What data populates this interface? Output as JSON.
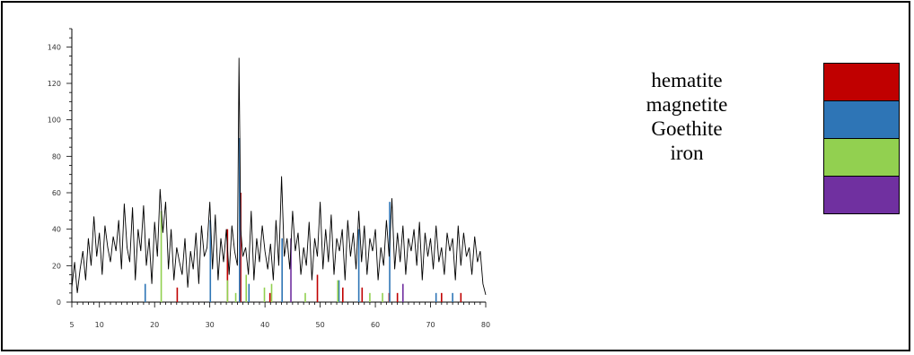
{
  "chart_data": {
    "type": "line",
    "xlabel": "",
    "ylabel": "",
    "xlim": [
      5,
      80
    ],
    "ylim": [
      0,
      150
    ],
    "x_ticks": [
      5,
      10,
      20,
      30,
      40,
      50,
      60,
      70,
      80
    ],
    "y_ticks": [
      0,
      20,
      40,
      60,
      80,
      100,
      120,
      140
    ],
    "series": [
      {
        "type": "line",
        "color": "#000000",
        "x": [
          5.0,
          5.5,
          6.0,
          6.5,
          7.0,
          7.5,
          8.0,
          8.5,
          9.0,
          9.5,
          10.0,
          10.5,
          11.0,
          11.5,
          12.0,
          12.5,
          13.0,
          13.5,
          14.0,
          14.5,
          15.0,
          15.5,
          16.0,
          16.5,
          17.0,
          17.5,
          18.0,
          18.5,
          19.0,
          19.5,
          20.0,
          20.5,
          21.0,
          21.5,
          22.0,
          22.5,
          23.0,
          23.5,
          24.0,
          24.5,
          25.0,
          25.5,
          26.0,
          26.5,
          27.0,
          27.5,
          28.0,
          28.5,
          29.0,
          29.5,
          30.0,
          30.5,
          31.0,
          31.5,
          32.0,
          32.5,
          33.0,
          33.5,
          34.0,
          34.5,
          35.0,
          35.3,
          35.6,
          36.0,
          36.5,
          37.0,
          37.5,
          38.0,
          38.5,
          39.0,
          39.5,
          40.0,
          40.5,
          41.0,
          41.5,
          42.0,
          42.5,
          43.0,
          43.5,
          44.0,
          44.5,
          45.0,
          45.5,
          46.0,
          46.5,
          47.0,
          47.5,
          48.0,
          48.5,
          49.0,
          49.5,
          50.0,
          50.5,
          51.0,
          51.5,
          52.0,
          52.5,
          53.0,
          53.5,
          54.0,
          54.5,
          55.0,
          55.5,
          56.0,
          56.5,
          57.0,
          57.5,
          58.0,
          58.5,
          59.0,
          59.5,
          60.0,
          60.5,
          61.0,
          61.5,
          62.0,
          62.5,
          63.0,
          63.5,
          64.0,
          64.5,
          65.0,
          65.5,
          66.0,
          66.5,
          67.0,
          67.5,
          68.0,
          68.5,
          69.0,
          69.5,
          70.0,
          70.5,
          71.0,
          71.5,
          72.0,
          72.5,
          73.0,
          73.5,
          74.0,
          74.5,
          75.0,
          75.5,
          76.0,
          76.5,
          77.0,
          77.5,
          78.0,
          78.5,
          79.0,
          79.5,
          80.0
        ],
        "y": [
          8,
          22,
          5,
          18,
          28,
          12,
          35,
          20,
          47,
          25,
          38,
          15,
          42,
          30,
          22,
          36,
          28,
          45,
          18,
          54,
          30,
          22,
          52,
          12,
          40,
          28,
          53,
          20,
          35,
          10,
          44,
          25,
          62,
          38,
          55,
          18,
          40,
          12,
          30,
          22,
          15,
          35,
          8,
          28,
          18,
          38,
          10,
          42,
          25,
          30,
          55,
          18,
          48,
          12,
          35,
          22,
          40,
          15,
          42,
          28,
          20,
          134,
          40,
          25,
          30,
          15,
          50,
          12,
          35,
          22,
          42,
          28,
          18,
          32,
          12,
          45,
          20,
          69,
          25,
          35,
          18,
          50,
          28,
          38,
          15,
          30,
          20,
          44,
          12,
          35,
          25,
          55,
          18,
          40,
          22,
          48,
          15,
          35,
          28,
          40,
          12,
          45,
          25,
          38,
          18,
          50,
          22,
          42,
          15,
          35,
          28,
          40,
          12,
          30,
          20,
          45,
          25,
          57,
          18,
          38,
          22,
          42,
          15,
          35,
          28,
          40,
          20,
          44,
          12,
          38,
          25,
          35,
          18,
          42,
          22,
          30,
          15,
          38,
          28,
          35,
          12,
          42,
          20,
          38,
          25,
          30,
          15,
          36,
          22,
          28,
          10,
          4
        ]
      },
      {
        "name": "hematite",
        "color": "#c00000",
        "type": "stick",
        "x": [
          24.1,
          33.2,
          35.6,
          40.9,
          49.5,
          54.1,
          57.6,
          62.5,
          64.0,
          72.0,
          75.5
        ],
        "y": [
          8,
          40,
          60,
          5,
          15,
          8,
          8,
          5,
          5,
          5,
          5
        ]
      },
      {
        "name": "magnetite",
        "color": "#2e75b6",
        "type": "stick",
        "x": [
          18.3,
          30.1,
          35.4,
          37.1,
          43.1,
          53.4,
          57.0,
          62.6,
          71.0,
          74.0
        ],
        "y": [
          10,
          45,
          90,
          10,
          35,
          12,
          40,
          55,
          5,
          5
        ]
      },
      {
        "name": "Goethite",
        "color": "#92d050",
        "type": "stick",
        "x": [
          21.2,
          33.2,
          34.7,
          36.6,
          39.9,
          41.2,
          47.3,
          53.2,
          59.0,
          61.3
        ],
        "y": [
          50,
          12,
          5,
          15,
          8,
          10,
          5,
          12,
          5,
          5
        ]
      },
      {
        "name": "iron",
        "color": "#7030a0",
        "type": "stick",
        "x": [
          44.7,
          65.0
        ],
        "y": [
          35,
          10
        ]
      }
    ]
  },
  "legend": [
    {
      "label": "hematite",
      "color": "#c00000"
    },
    {
      "label": "magnetite",
      "color": "#2e75b6"
    },
    {
      "label": "Goethite",
      "color": "#92d050"
    },
    {
      "label": "iron",
      "color": "#7030a0"
    }
  ]
}
